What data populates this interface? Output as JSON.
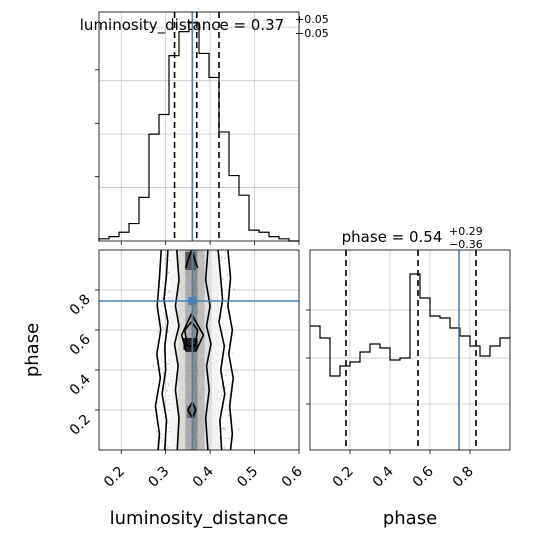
{
  "chart_data": {
    "type": "corner",
    "parameters": [
      "luminosity_distance",
      "phase"
    ],
    "xlabels": [
      "luminosity_distance",
      "phase"
    ],
    "ylabel_2d": "phase",
    "titles": {
      "luminosity_distance": {
        "text": "luminosity_distance = 0.37",
        "sup": "+0.05",
        "sub": "−0.05"
      },
      "phase": {
        "text": "phase = 0.54",
        "sup": "+0.29",
        "sub": "−0.36"
      }
    },
    "truth": {
      "luminosity_distance": 0.36,
      "phase": 0.745
    },
    "colors": {
      "truth": "#4682b4",
      "hist": "#000000",
      "grid": "#c8c8c8",
      "points": "#9a9a9a"
    },
    "lum_hist": {
      "range": [
        0.15,
        0.6
      ],
      "edges": [
        0.15,
        0.1725,
        0.195,
        0.2175,
        0.24,
        0.2625,
        0.285,
        0.3075,
        0.33,
        0.3525,
        0.375,
        0.3975,
        0.42,
        0.4425,
        0.465,
        0.4875,
        0.51,
        0.5325,
        0.555,
        0.5775,
        0.6
      ],
      "counts": [
        0.01,
        0.02,
        0.04,
        0.08,
        0.2,
        0.49,
        0.58,
        0.85,
        0.96,
        1.0,
        0.86,
        0.75,
        0.5,
        0.3,
        0.21,
        0.05,
        0.04,
        0.02,
        0.01,
        0.0
      ],
      "quantiles": [
        0.32,
        0.37,
        0.42
      ],
      "xticks": [
        0.2,
        0.3,
        0.4,
        0.5,
        0.6
      ]
    },
    "phase_hist": {
      "range": [
        0.0,
        1.0
      ],
      "edges": [
        0.0,
        0.05,
        0.1,
        0.15,
        0.2,
        0.25,
        0.3,
        0.35,
        0.4,
        0.45,
        0.5,
        0.55,
        0.6,
        0.65,
        0.7,
        0.75,
        0.8,
        0.85,
        0.9,
        0.95,
        1.0
      ],
      "counts": [
        0.62,
        0.56,
        0.37,
        0.42,
        0.44,
        0.49,
        0.53,
        0.51,
        0.45,
        0.46,
        0.88,
        0.76,
        0.67,
        0.66,
        0.61,
        0.57,
        0.52,
        0.47,
        0.52,
        0.56
      ],
      "quantiles": [
        0.18,
        0.54,
        0.83
      ],
      "xticks": [
        0.2,
        0.4,
        0.6,
        0.8
      ]
    },
    "joint": {
      "xrange": [
        0.15,
        0.6
      ],
      "yrange": [
        0.0,
        1.0
      ],
      "yticks": [
        0.2,
        0.4,
        0.6,
        0.8
      ],
      "xticks": [
        0.2,
        0.3,
        0.4,
        0.5,
        0.6
      ],
      "columns": [
        {
          "x0": 0.31,
          "x1": 0.328,
          "shade": "#f4f4f4"
        },
        {
          "x0": 0.328,
          "x1": 0.344,
          "shade": "#d6d6d6"
        },
        {
          "x0": 0.344,
          "x1": 0.36,
          "shade": "#a0a0a0"
        },
        {
          "x0": 0.36,
          "x1": 0.372,
          "shade": "#7a7a7a"
        },
        {
          "x0": 0.372,
          "x1": 0.388,
          "shade": "#b4b4b4"
        },
        {
          "x0": 0.388,
          "x1": 0.404,
          "shade": "#dedede"
        },
        {
          "x0": 0.404,
          "x1": 0.42,
          "shade": "#f2f2f2"
        }
      ],
      "blobs": [
        {
          "x0": 0.34,
          "x1": 0.372,
          "y0": 0.5,
          "y1": 0.56,
          "shade": "#1e1e1e"
        },
        {
          "x0": 0.344,
          "x1": 0.368,
          "y0": 0.9,
          "y1": 0.99,
          "shade": "#5a5a5a"
        },
        {
          "x0": 0.348,
          "x1": 0.368,
          "y0": 0.16,
          "y1": 0.22,
          "shade": "#6a6a6a"
        }
      ],
      "contours": [
        [
          [
            0.325,
            1.0
          ],
          [
            0.33,
            0.85
          ],
          [
            0.322,
            0.72
          ],
          [
            0.33,
            0.62
          ],
          [
            0.32,
            0.53
          ],
          [
            0.328,
            0.42
          ],
          [
            0.322,
            0.3
          ],
          [
            0.33,
            0.16
          ],
          [
            0.326,
            0.0
          ]
        ],
        [
          [
            0.395,
            1.0
          ],
          [
            0.39,
            0.85
          ],
          [
            0.4,
            0.72
          ],
          [
            0.392,
            0.62
          ],
          [
            0.402,
            0.53
          ],
          [
            0.392,
            0.42
          ],
          [
            0.398,
            0.3
          ],
          [
            0.39,
            0.16
          ],
          [
            0.395,
            0.0
          ]
        ],
        [
          [
            0.305,
            1.0
          ],
          [
            0.302,
            0.88
          ],
          [
            0.296,
            0.75
          ],
          [
            0.305,
            0.64
          ],
          [
            0.298,
            0.52
          ],
          [
            0.3,
            0.4
          ],
          [
            0.292,
            0.28
          ],
          [
            0.302,
            0.15
          ],
          [
            0.298,
            0.0
          ]
        ],
        [
          [
            0.418,
            1.0
          ],
          [
            0.423,
            0.88
          ],
          [
            0.428,
            0.75
          ],
          [
            0.42,
            0.64
          ],
          [
            0.432,
            0.52
          ],
          [
            0.424,
            0.4
          ],
          [
            0.433,
            0.28
          ],
          [
            0.422,
            0.15
          ],
          [
            0.426,
            0.0
          ]
        ],
        [
          [
            0.29,
            1.0
          ],
          [
            0.286,
            0.86
          ],
          [
            0.281,
            0.72
          ],
          [
            0.289,
            0.6
          ],
          [
            0.28,
            0.48
          ],
          [
            0.288,
            0.36
          ],
          [
            0.277,
            0.22
          ],
          [
            0.286,
            0.08
          ],
          [
            0.283,
            0.0
          ]
        ],
        [
          [
            0.44,
            1.0
          ],
          [
            0.446,
            0.86
          ],
          [
            0.44,
            0.72
          ],
          [
            0.45,
            0.6
          ],
          [
            0.442,
            0.48
          ],
          [
            0.452,
            0.36
          ],
          [
            0.444,
            0.22
          ],
          [
            0.45,
            0.08
          ],
          [
            0.446,
            0.0
          ]
        ],
        [
          [
            0.343,
            0.6
          ],
          [
            0.358,
            0.64
          ],
          [
            0.372,
            0.6
          ],
          [
            0.366,
            0.52
          ],
          [
            0.348,
            0.52
          ],
          [
            0.343,
            0.6
          ]
        ],
        [
          [
            0.336,
            0.575
          ],
          [
            0.358,
            0.68
          ],
          [
            0.385,
            0.575
          ],
          [
            0.368,
            0.495
          ],
          [
            0.346,
            0.495
          ],
          [
            0.336,
            0.575
          ]
        ],
        [
          [
            0.345,
            0.91
          ],
          [
            0.358,
            1.0
          ],
          [
            0.372,
            0.91
          ]
        ],
        [
          [
            0.35,
            0.2
          ],
          [
            0.36,
            0.24
          ],
          [
            0.368,
            0.2
          ],
          [
            0.36,
            0.16
          ],
          [
            0.35,
            0.2
          ]
        ]
      ]
    }
  }
}
